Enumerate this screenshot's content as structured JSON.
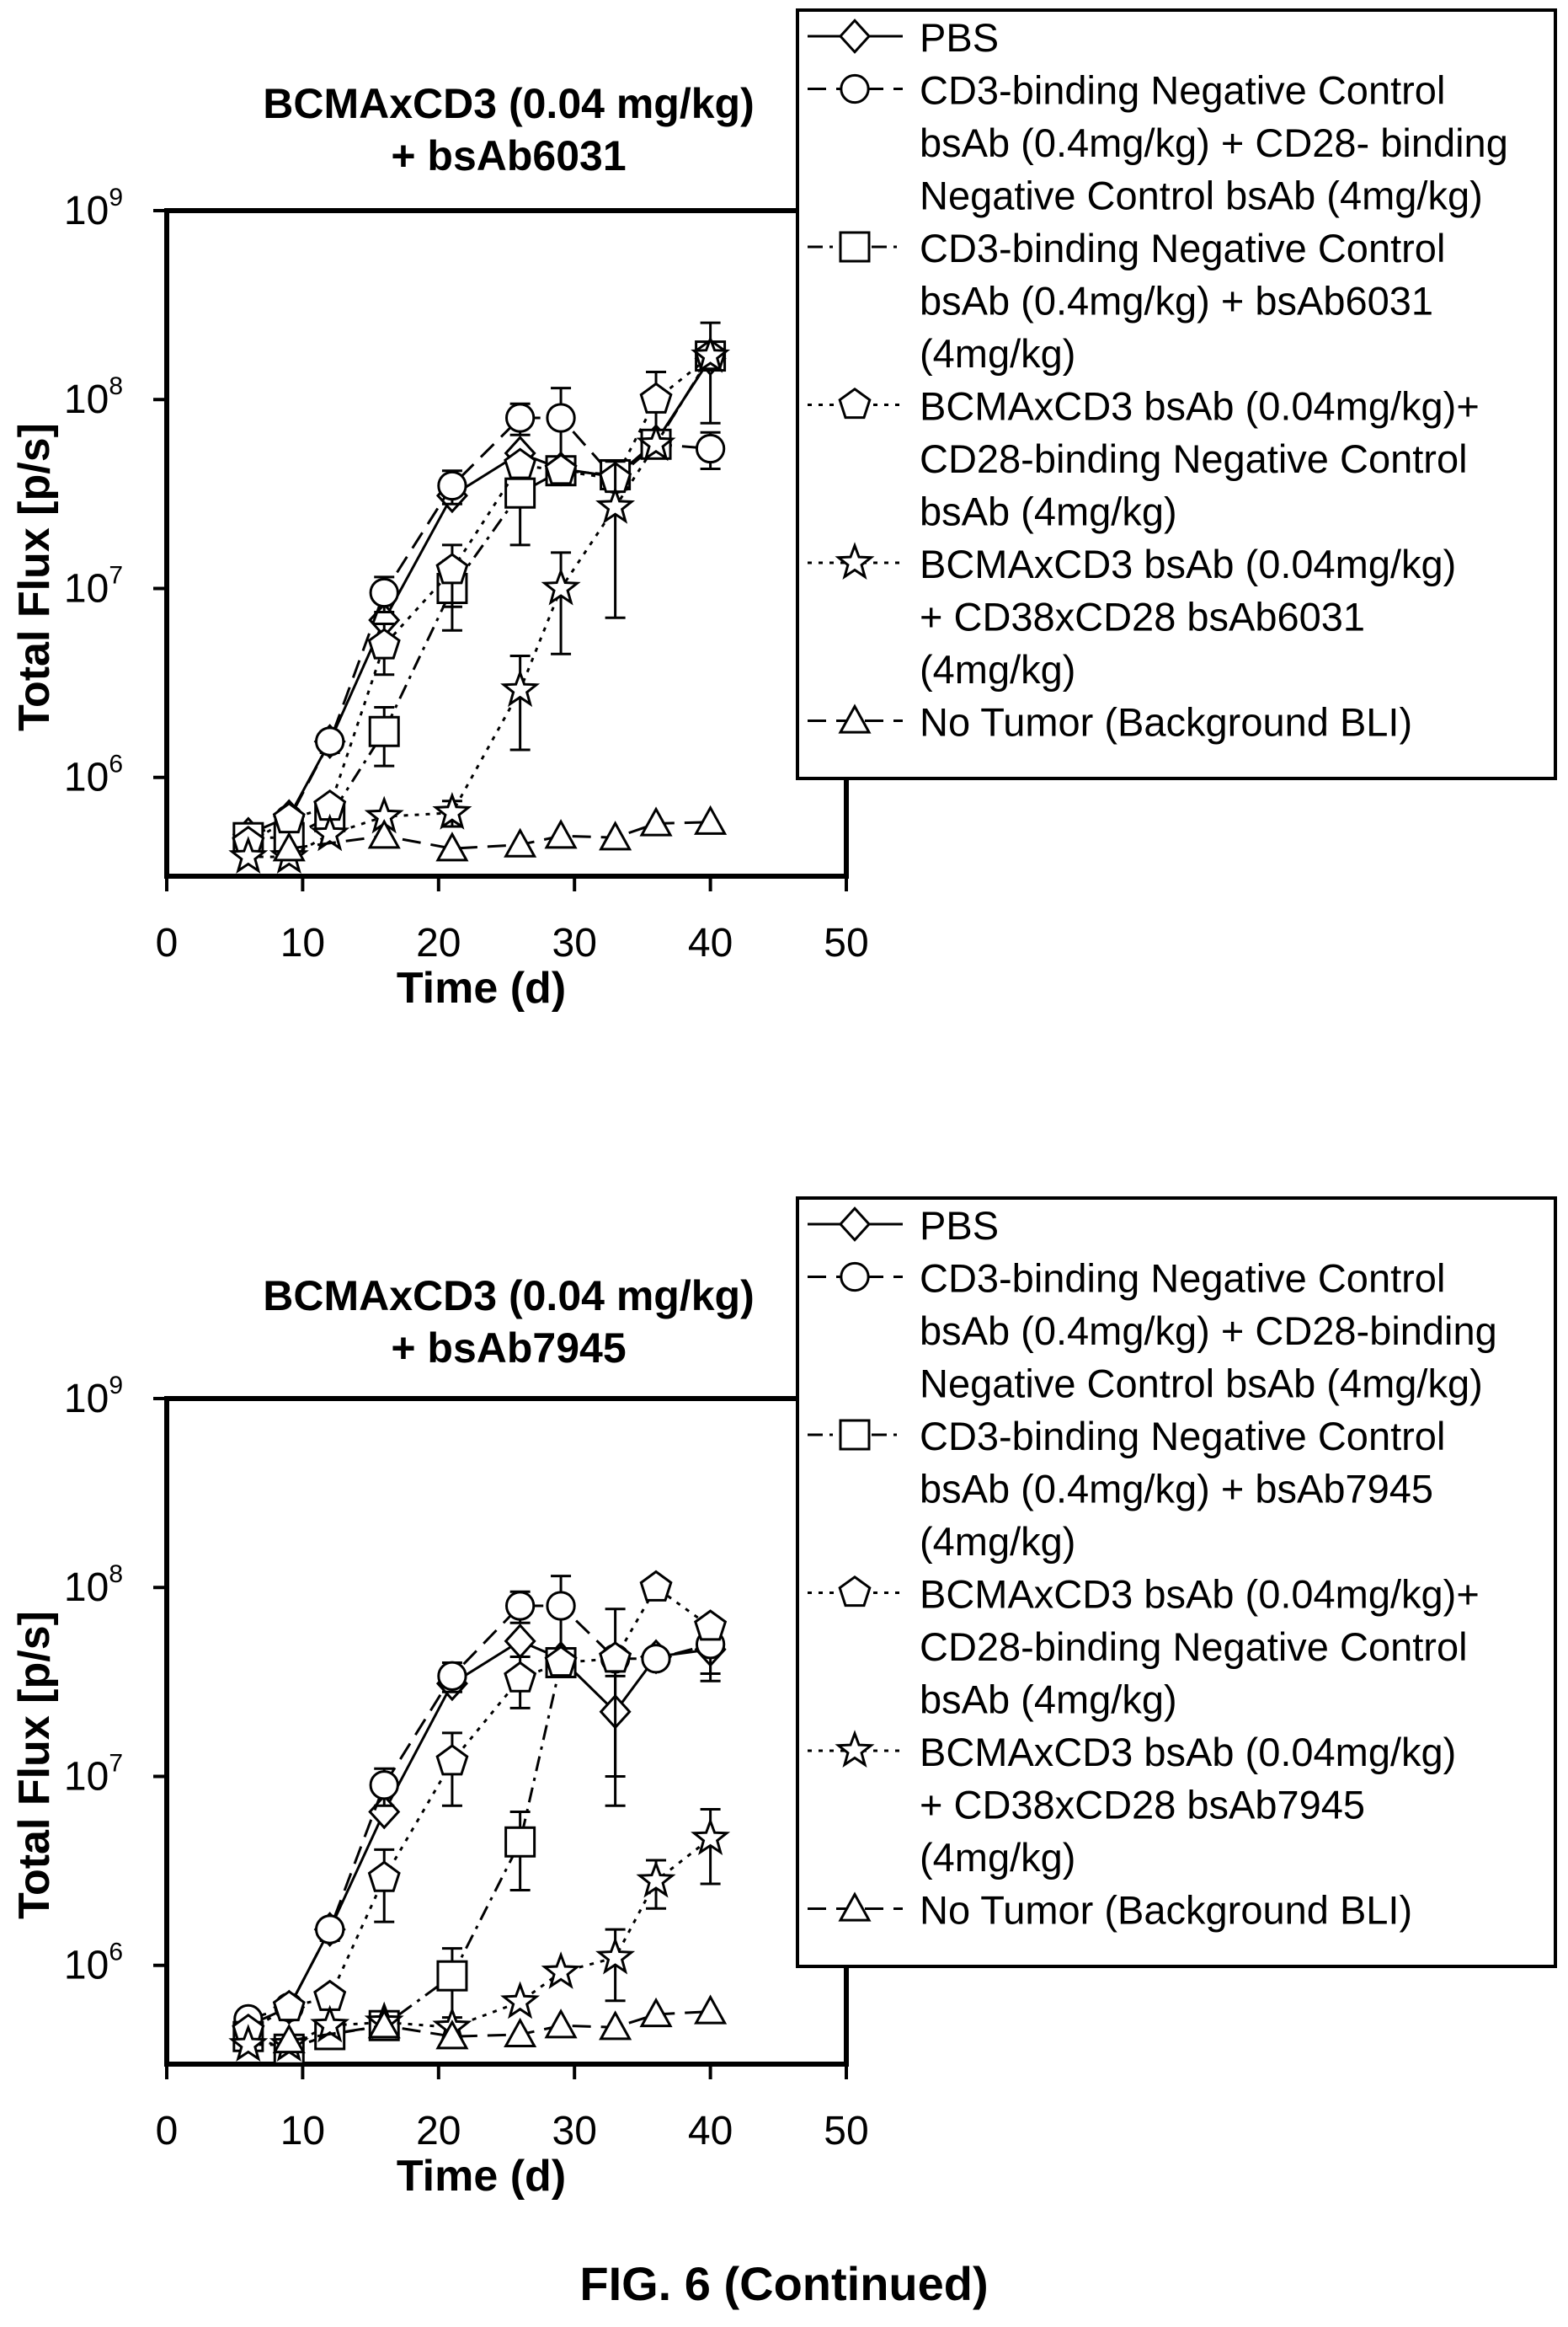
{
  "figure_caption": "FIG. 6 (Continued)",
  "chart_data": [
    {
      "type": "line",
      "title_lines": [
        "BCMAxCD3 (0.04 mg/kg)",
        "+ bsAb6031"
      ],
      "xlabel": "Time (d)",
      "ylabel": "Total Flux [p/s]",
      "xlim": [
        0,
        50
      ],
      "ylim": [
        300000,
        1000000000
      ],
      "yscale": "log",
      "x_ticks": [
        "0",
        "10",
        "20",
        "30",
        "40",
        "50"
      ],
      "y_ticks": [
        {
          "base": "10",
          "exp": "6"
        },
        {
          "base": "10",
          "exp": "7"
        },
        {
          "base": "10",
          "exp": "8"
        },
        {
          "base": "10",
          "exp": "9"
        }
      ],
      "grid": false,
      "legend_position": "top-right",
      "series": [
        {
          "legend_lines": [
            "PBS"
          ],
          "marker": "diamond",
          "dash": "solid",
          "x": [
            6,
            9,
            12,
            16,
            21,
            26,
            29,
            33,
            36,
            40
          ],
          "y": [
            500000,
            620000,
            1550000,
            6800000,
            31000000,
            52000000,
            43000000,
            39000000,
            60000000,
            165000000
          ],
          "err": [
            0,
            0,
            0,
            2500000,
            0,
            0,
            0,
            0,
            0,
            90000000
          ]
        },
        {
          "legend_lines": [
            "CD3-binding Negative Control",
            "bsAb (0.4mg/kg) + CD28- binding",
            "Negative Control bsAb (4mg/kg)"
          ],
          "marker": "circle",
          "dash": "longdash",
          "x": [
            6,
            9,
            12,
            16,
            21,
            26,
            29,
            33,
            36,
            40
          ],
          "y": [
            480000,
            600000,
            1550000,
            9500000,
            35000000,
            80000000,
            80000000,
            38000000,
            58000000,
            55000000
          ],
          "err": [
            0,
            0,
            200000,
            2000000,
            7000000,
            15000000,
            35000000,
            0,
            0,
            12000000
          ]
        },
        {
          "legend_lines": [
            "CD3-binding Negative Control",
            "bsAb (0.4mg/kg) + bsAb6031",
            "(4mg/kg)"
          ],
          "marker": "square",
          "dash": "dashdot",
          "x": [
            6,
            9,
            12,
            16,
            21,
            26,
            29,
            33,
            36,
            40
          ],
          "y": [
            480000,
            480000,
            620000,
            1750000,
            10000000,
            32000000,
            42000000,
            40000000,
            58000000,
            170000000
          ],
          "err": [
            0,
            0,
            0,
            600000,
            4000000,
            15000000,
            0,
            0,
            0,
            0
          ]
        },
        {
          "legend_lines": [
            "BCMAxCD3 bsAb (0.04mg/kg)+",
            "CD28-binding Negative Control",
            "bsAb (4mg/kg)"
          ],
          "marker": "pentagon",
          "dash": "dotted",
          "x": [
            6,
            9,
            12,
            16,
            21,
            26,
            29,
            33,
            36,
            40
          ],
          "y": [
            450000,
            600000,
            700000,
            5000000,
            12500000,
            45000000,
            42000000,
            38000000,
            100000000,
            170000000
          ],
          "err": [
            0,
            0,
            0,
            1500000,
            4500000,
            0,
            0,
            0,
            40000000,
            0
          ]
        },
        {
          "legend_lines": [
            "BCMAxCD3 bsAb (0.04mg/kg)",
            "+ CD38xCD28 bsAb6031",
            "(4mg/kg)"
          ],
          "marker": "star",
          "dash": "dotted",
          "x": [
            6,
            9,
            12,
            16,
            21,
            26,
            29,
            33,
            36,
            40
          ],
          "y": [
            380000,
            380000,
            500000,
            620000,
            650000,
            2900000,
            10000000,
            27000000,
            58000000,
            170000000
          ],
          "err": [
            0,
            0,
            0,
            0,
            100000,
            1500000,
            5500000,
            20000000,
            0,
            0
          ]
        },
        {
          "legend_lines": [
            "No Tumor (Background BLI)"
          ],
          "marker": "triangle",
          "dash": "longdash",
          "x": [
            9,
            16,
            21,
            26,
            29,
            33,
            36,
            40
          ],
          "y": [
            420000,
            490000,
            420000,
            440000,
            490000,
            480000,
            570000,
            580000
          ],
          "err": [
            0,
            0,
            0,
            0,
            0,
            0,
            0,
            0
          ]
        }
      ]
    },
    {
      "type": "line",
      "title_lines": [
        "BCMAxCD3 (0.04 mg/kg)",
        "+ bsAb7945"
      ],
      "xlabel": "Time (d)",
      "ylabel": "Total Flux [p/s]",
      "xlim": [
        0,
        50
      ],
      "ylim": [
        300000,
        1000000000
      ],
      "yscale": "log",
      "x_ticks": [
        "0",
        "10",
        "20",
        "30",
        "40",
        "50"
      ],
      "y_ticks": [
        {
          "base": "10",
          "exp": "6"
        },
        {
          "base": "10",
          "exp": "7"
        },
        {
          "base": "10",
          "exp": "8"
        },
        {
          "base": "10",
          "exp": "9"
        }
      ],
      "grid": false,
      "legend_position": "top-right",
      "series": [
        {
          "legend_lines": [
            "PBS"
          ],
          "marker": "diamond",
          "dash": "solid",
          "x": [
            6,
            9,
            12,
            16,
            21,
            26,
            29,
            33,
            36,
            40
          ],
          "y": [
            480000,
            600000,
            1550000,
            6500000,
            31000000,
            52000000,
            42000000,
            22000000,
            43000000,
            47000000
          ],
          "err": [
            0,
            0,
            0,
            0,
            0,
            0,
            0,
            12000000,
            0,
            15000000
          ]
        },
        {
          "legend_lines": [
            "CD3-binding Negative Control",
            "bsAb (0.4mg/kg) + CD28-binding",
            "Negative Control bsAb (4mg/kg)"
          ],
          "marker": "circle",
          "dash": "longdash",
          "x": [
            6,
            9,
            12,
            16,
            21,
            26,
            29,
            33,
            36,
            40
          ],
          "y": [
            520000,
            600000,
            1550000,
            9000000,
            34000000,
            80000000,
            80000000,
            42000000,
            42000000,
            50000000
          ],
          "err": [
            0,
            0,
            200000,
            2000000,
            6000000,
            15000000,
            35000000,
            0,
            0,
            15000000
          ]
        },
        {
          "legend_lines": [
            "CD3-binding Negative Control",
            "bsAb (0.4mg/kg) + bsAb7945",
            "(4mg/kg)"
          ],
          "marker": "square",
          "dash": "dashdot",
          "x": [
            6,
            9,
            12,
            16,
            21,
            26,
            29,
            33,
            36,
            40
          ],
          "y": [
            420000,
            360000,
            430000,
            480000,
            880000,
            4500000,
            40000000,
            0,
            0,
            0
          ],
          "err": [
            0,
            0,
            0,
            0,
            350000,
            2000000,
            0,
            0,
            0,
            0
          ]
        },
        {
          "legend_lines": [
            "BCMAxCD3 bsAb (0.04mg/kg)+",
            "CD28-binding Negative Control",
            "bsAb (4mg/kg)"
          ],
          "marker": "pentagon",
          "dash": "dotted",
          "x": [
            6,
            9,
            12,
            16,
            21,
            26,
            29,
            33,
            36,
            40
          ],
          "y": [
            450000,
            600000,
            680000,
            2900000,
            12000000,
            33000000,
            40000000,
            42000000,
            100000000,
            62000000
          ],
          "err": [
            0,
            0,
            0,
            1200000,
            5000000,
            10000000,
            0,
            35000000,
            0,
            0
          ]
        },
        {
          "legend_lines": [
            "BCMAxCD3 bsAb (0.04mg/kg)",
            "+ CD38xCD28 bsAb7945",
            "(4mg/kg)"
          ],
          "marker": "star",
          "dash": "dotted",
          "x": [
            6,
            9,
            12,
            16,
            21,
            26,
            29,
            33,
            36,
            40
          ],
          "y": [
            380000,
            380000,
            480000,
            500000,
            470000,
            640000,
            920000,
            1100000,
            2800000,
            4700000
          ],
          "err": [
            0,
            0,
            0,
            0,
            0,
            0,
            0,
            450000,
            800000,
            2000000
          ]
        },
        {
          "legend_lines": [
            "No Tumor (Background BLI)"
          ],
          "marker": "triangle",
          "dash": "longdash",
          "x": [
            9,
            16,
            21,
            26,
            29,
            33,
            36,
            40
          ],
          "y": [
            400000,
            480000,
            420000,
            430000,
            480000,
            470000,
            550000,
            570000
          ],
          "err": [
            0,
            0,
            0,
            0,
            0,
            0,
            0,
            0
          ]
        }
      ]
    }
  ]
}
